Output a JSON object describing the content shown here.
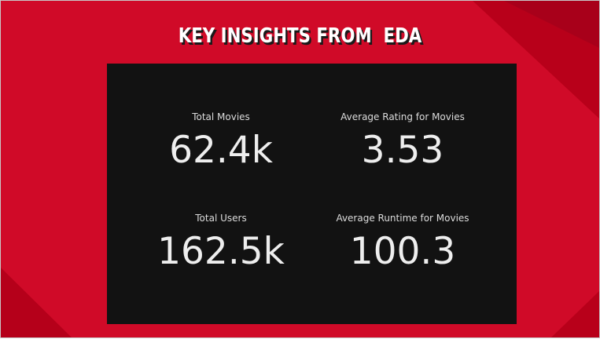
{
  "slide": {
    "title": "KEY INSIGHTS FROM  EDA",
    "background_color": "#d00a28",
    "panel_color": "#121212"
  },
  "kpis": [
    {
      "label": "Total Movies",
      "value": "62.4k"
    },
    {
      "label": "Average Rating for Movies",
      "value": "3.53"
    },
    {
      "label": "Total Users",
      "value": "162.5k"
    },
    {
      "label": "Average Runtime for Movies",
      "value": "100.3"
    }
  ]
}
